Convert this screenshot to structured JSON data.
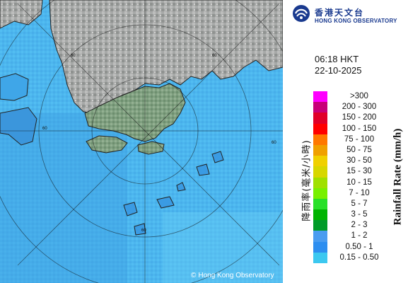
{
  "header": {
    "logo_icon": "hko-logo-icon",
    "org_name_zh": "香港天文台",
    "org_name_en": "HONG KONG OBSERVATORY"
  },
  "timestamp": {
    "time": "06:18 HKT",
    "date": "22-10-2025"
  },
  "legend": {
    "title_en": "Rainfall Rate (mm/h)",
    "title_zh": "降雨率(毫米/小時)",
    "items": [
      {
        "range": ">300",
        "color": "#ff00ff"
      },
      {
        "range": "200 - 300",
        "color": "#c80078"
      },
      {
        "range": "150 - 200",
        "color": "#e00028"
      },
      {
        "range": "100 - 150",
        "color": "#ff0000"
      },
      {
        "range": "75 - 100",
        "color": "#ff7800"
      },
      {
        "range": "50 - 75",
        "color": "#f0a000"
      },
      {
        "range": "30 - 50",
        "color": "#f0d000"
      },
      {
        "range": "15 - 30",
        "color": "#d7d700"
      },
      {
        "range": "10 - 15",
        "color": "#a0e000"
      },
      {
        "range": "7 - 10",
        "color": "#78f000"
      },
      {
        "range": "5 - 7",
        "color": "#28e028"
      },
      {
        "range": "3 - 5",
        "color": "#00b400"
      },
      {
        "range": "2 - 3",
        "color": "#009b28"
      },
      {
        "range": "1 - 2",
        "color": "#4a9cf0"
      },
      {
        "range": "0.50 - 1",
        "color": "#2d8ef0"
      },
      {
        "range": "0.15 - 0.50",
        "color": "#3cc8f0"
      }
    ]
  },
  "map": {
    "range_ring_labels": [
      "60",
      "60",
      "60",
      "60",
      "60"
    ],
    "copyright": "Hong Kong Observatory",
    "copyright_symbol": "©"
  }
}
